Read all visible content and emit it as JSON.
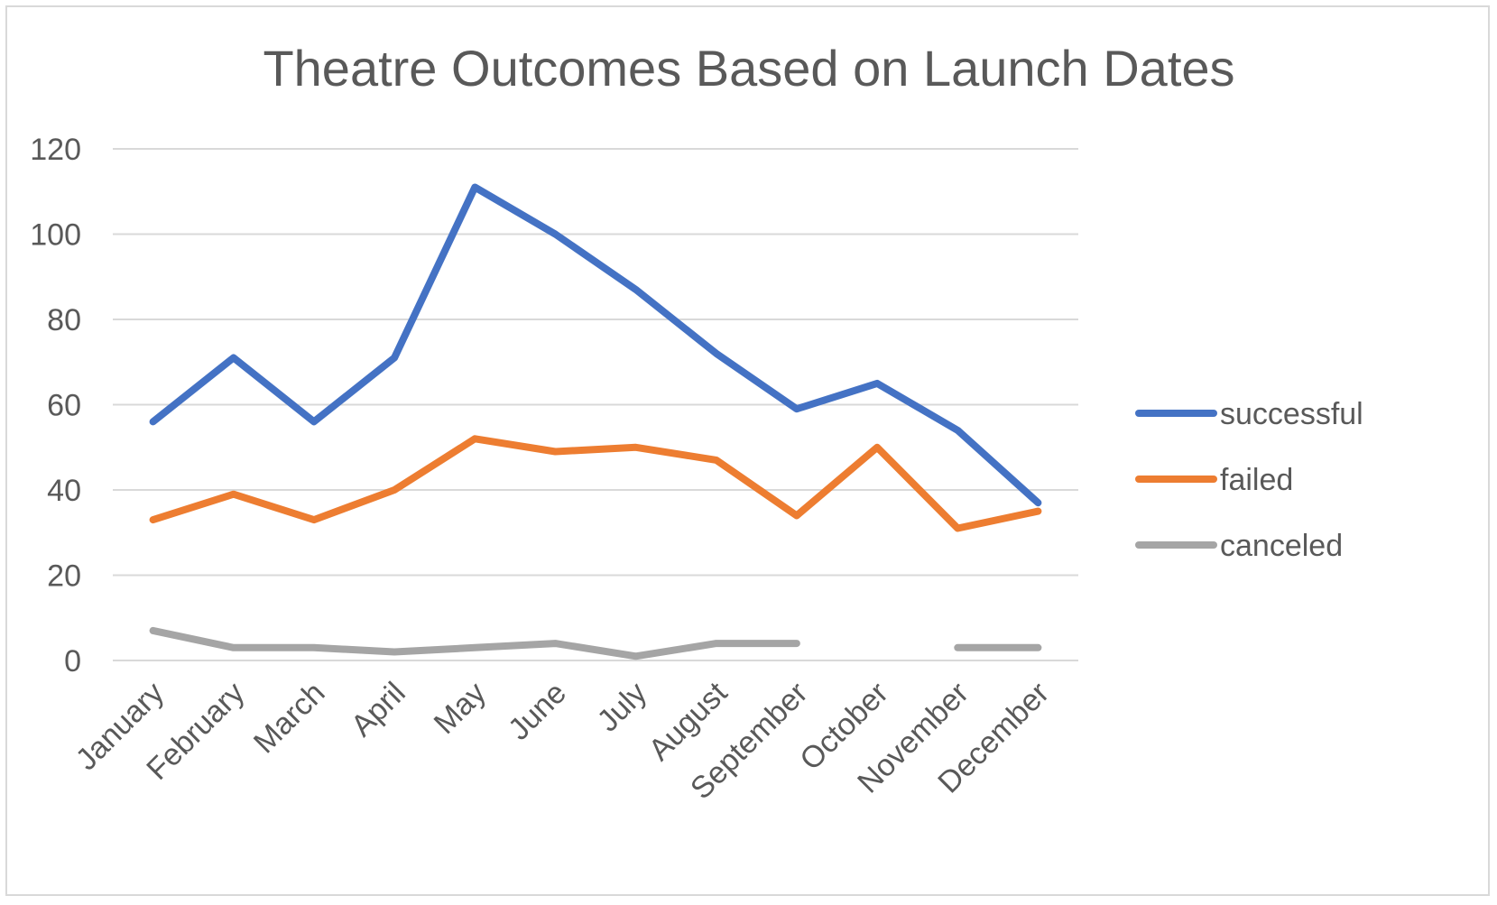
{
  "chart_data": {
    "type": "line",
    "title": "Theatre Outcomes Based on Launch Dates",
    "xlabel": "",
    "ylabel": "",
    "categories": [
      "January",
      "February",
      "March",
      "April",
      "May",
      "June",
      "July",
      "August",
      "September",
      "October",
      "November",
      "December"
    ],
    "ylim": [
      0,
      120
    ],
    "yticks": [
      0,
      20,
      40,
      60,
      80,
      100,
      120
    ],
    "grid": true,
    "legend_position": "right",
    "series": [
      {
        "name": "successful",
        "color": "#4472c4",
        "values": [
          56,
          71,
          56,
          71,
          111,
          100,
          87,
          72,
          59,
          65,
          54,
          37
        ]
      },
      {
        "name": "failed",
        "color": "#ed7d31",
        "values": [
          33,
          39,
          33,
          40,
          52,
          49,
          50,
          47,
          34,
          50,
          31,
          35
        ]
      },
      {
        "name": "canceled",
        "color": "#a5a5a5",
        "values": [
          7,
          3,
          3,
          2,
          3,
          4,
          1,
          4,
          4,
          null,
          3,
          3
        ]
      }
    ]
  }
}
